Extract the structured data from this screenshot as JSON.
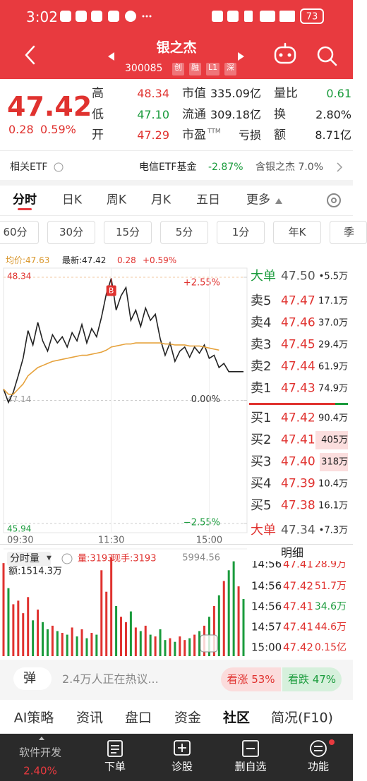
{
  "status_bar": {
    "time": "3:02",
    "battery": "73"
  },
  "header": {
    "name": "银之杰",
    "code": "300085",
    "tags": [
      "创",
      "融",
      "L1",
      "深"
    ]
  },
  "quote": {
    "price": "47.42",
    "change": "0.28",
    "change_pct": "0.59%",
    "stats": [
      {
        "label": "高",
        "value": "48.34",
        "color": "#e0322f"
      },
      {
        "label": "市值",
        "value": "335.09亿",
        "color": "#222222"
      },
      {
        "label": "量比",
        "value": "0.61",
        "color": "#1a9b3c"
      },
      {
        "label": "低",
        "value": "47.10",
        "color": "#1a9b3c"
      },
      {
        "label": "流通",
        "value": "309.18亿",
        "color": "#222222"
      },
      {
        "label": "换",
        "value": "2.80%",
        "color": "#222222"
      },
      {
        "label": "开",
        "value": "47.29",
        "color": "#e0322f"
      },
      {
        "label": "市盈",
        "sup": "TTM",
        "value": "亏损",
        "color": "#222222"
      },
      {
        "label": "额",
        "value": "8.71亿",
        "color": "#222222"
      }
    ]
  },
  "etf": {
    "label": "相关ETF",
    "fund": "电信ETF基金",
    "fund_change": "-2.87%",
    "holding": "含银之杰 7.0%"
  },
  "tabs": [
    "分时",
    "日K",
    "周K",
    "月K",
    "五日",
    "更多"
  ],
  "periods": [
    "60分",
    "30分",
    "15分",
    "5分",
    "1分",
    "年K",
    "季"
  ],
  "chart_legend": {
    "avg": "均价:47.63",
    "latest": "最新:47.42",
    "change": "0.28",
    "change_pct": "+0.59%"
  },
  "chart_data": [
    {
      "type": "line",
      "categories": [
        "09:30",
        null,
        null,
        null,
        null,
        null,
        null,
        null,
        null,
        null,
        null,
        null,
        null,
        null,
        null,
        null,
        null,
        null,
        null,
        null,
        null,
        null,
        "11:30",
        null,
        null,
        null,
        null,
        null,
        null,
        null,
        null,
        null,
        null,
        null,
        null,
        null,
        null,
        null,
        null,
        null,
        null,
        null,
        "15:00",
        null,
        null,
        null,
        null,
        null,
        null,
        null
      ],
      "series": [
        {
          "color": "#222222",
          "values": [
            47.25,
            47.12,
            47.22,
            47.38,
            47.55,
            47.82,
            47.68,
            47.9,
            47.72,
            47.62,
            47.78,
            47.7,
            47.76,
            47.66,
            47.8,
            47.72,
            47.88,
            47.7,
            47.84,
            47.76,
            47.95,
            48.18,
            48.33,
            48.02,
            48.16,
            48.24,
            47.92,
            48.02,
            47.86,
            48.04,
            47.92,
            47.98,
            47.74,
            47.58,
            47.7,
            47.52,
            47.62,
            47.66,
            47.56,
            47.66,
            47.6,
            47.68,
            47.55,
            47.58,
            47.46,
            47.5,
            47.42,
            47.42,
            47.42,
            47.42
          ]
        },
        {
          "color": "#e6a23c",
          "values": [
            47.25,
            47.2,
            47.2,
            47.25,
            47.3,
            47.38,
            47.42,
            47.46,
            47.48,
            47.5,
            47.52,
            47.53,
            47.54,
            47.55,
            47.56,
            47.57,
            47.58,
            47.58,
            47.59,
            47.6,
            47.61,
            47.63,
            47.66,
            47.67,
            47.68,
            47.69,
            47.69,
            47.7,
            47.7,
            47.7,
            47.7,
            47.7,
            47.7,
            47.69,
            47.69,
            47.68,
            47.68,
            47.68,
            47.67,
            47.67,
            47.67,
            47.66,
            47.65,
            47.64,
            47.63,
            null,
            null,
            null,
            null,
            null
          ]
        }
      ],
      "ylim": [
        45.94,
        48.34
      ],
      "yticks": [
        45.94,
        47.14,
        48.34
      ],
      "y2lim": [
        -2.55,
        2.55
      ],
      "y2ticks": [
        {
          "value": 2.55,
          "label": "+2.55%"
        },
        {
          "value": 0,
          "label": "0.00%"
        },
        {
          "value": -2.55,
          "label": "−2.55%"
        }
      ],
      "annotation": "B",
      "grid": true
    },
    {
      "type": "bar",
      "title": "分时量",
      "ylim": [
        0,
        5994.56
      ],
      "yticks": [
        5994.56
      ],
      "series": [
        {
          "color": "#e0322f",
          "values": [
            5200,
            null,
            2900,
            3100,
            2400,
            3300,
            null,
            2600,
            null,
            null,
            1700,
            null,
            1300,
            null,
            1600,
            null,
            1500,
            null,
            1300,
            null,
            4800,
            3600,
            5500,
            null,
            2200,
            1900,
            null,
            1600,
            null,
            1700,
            null,
            1100,
            null,
            null,
            1000,
            null,
            1100,
            900,
            null,
            1200,
            null,
            1700,
            null,
            2800,
            null,
            4200,
            null,
            null,
            3900,
            null
          ]
        },
        {
          "color": "#1a9b3c",
          "values": [
            null,
            3800,
            null,
            null,
            null,
            null,
            2000,
            null,
            1900,
            1500,
            null,
            1400,
            null,
            1200,
            null,
            1100,
            null,
            1000,
            null,
            1200,
            null,
            null,
            null,
            2800,
            null,
            null,
            2500,
            null,
            1400,
            null,
            1200,
            null,
            1500,
            900,
            null,
            800,
            null,
            null,
            1000,
            null,
            1400,
            null,
            2200,
            null,
            3400,
            null,
            4800,
            5300,
            null,
            3193
          ]
        }
      ]
    }
  ],
  "volume_legend": {
    "volume": "量:3193",
    "last": "现手:3193",
    "amount": "额:1514.3万"
  },
  "order_book": {
    "top_big": {
      "label": "大单",
      "price": "47.50",
      "volume": "•5.5万",
      "color": "#1a9b3c"
    },
    "asks": [
      {
        "label": "卖5",
        "price": "47.47",
        "volume": "17.1万"
      },
      {
        "label": "卖4",
        "price": "47.46",
        "volume": "37.0万"
      },
      {
        "label": "卖3",
        "price": "47.45",
        "volume": "29.4万"
      },
      {
        "label": "卖2",
        "price": "47.44",
        "volume": "61.9万"
      },
      {
        "label": "卖1",
        "price": "47.43",
        "volume": "74.9万"
      }
    ],
    "bids": [
      {
        "label": "买1",
        "price": "47.42",
        "volume": "90.4万"
      },
      {
        "label": "买2",
        "price": "47.41",
        "volume": "405万"
      },
      {
        "label": "买3",
        "price": "47.40",
        "volume": "318万"
      },
      {
        "label": "买4",
        "price": "47.39",
        "volume": "10.4万"
      },
      {
        "label": "买5",
        "price": "47.38",
        "volume": "16.1万"
      }
    ],
    "bottom_big": {
      "label": "大单",
      "price": "47.34",
      "volume": "•7.3万",
      "color": "#e0322f"
    }
  },
  "trades": {
    "title": "明细",
    "rows": [
      {
        "time": "14:56",
        "price": "47.41",
        "volume": "28.9万",
        "color": "#e0322f"
      },
      {
        "time": "14:56",
        "price": "47.42",
        "volume": "51.7万",
        "color": "#e0322f"
      },
      {
        "time": "14:56",
        "price": "47.41",
        "volume": "34.6万",
        "color": "#1a9b3c"
      },
      {
        "time": "14:57",
        "price": "47.41",
        "volume": "44.6万",
        "color": "#e0322f"
      },
      {
        "time": "15:00",
        "price": "47.42",
        "volume": "0.15亿",
        "color": "#e0322f"
      }
    ]
  },
  "discussion": {
    "button": "弹",
    "text": "2.4万人正在热议...",
    "bull": "看涨 53%",
    "bear": "看跌 47%"
  },
  "nav": [
    "AI策略",
    "资讯",
    "盘口",
    "资金",
    "社区",
    "简况(F10)"
  ],
  "toolbar": [
    {
      "label": "软件开发",
      "sub": "2.40%"
    },
    {
      "label": "下单"
    },
    {
      "label": "诊股"
    },
    {
      "label": "删自选"
    },
    {
      "label": "功能"
    }
  ]
}
